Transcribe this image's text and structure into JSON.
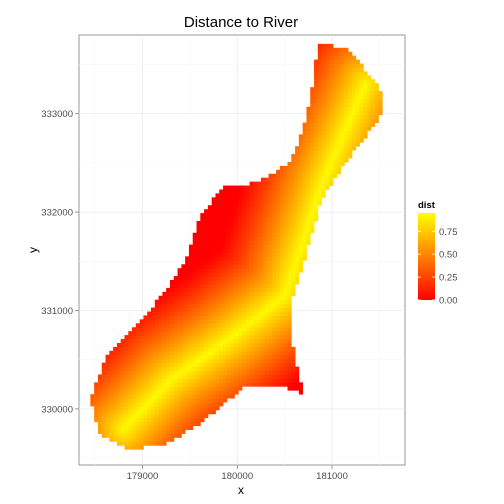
{
  "chart_data": {
    "type": "heatmap",
    "title": "Distance to River",
    "xlabel": "x",
    "ylabel": "y",
    "xlim": [
      178330,
      181770
    ],
    "ylim": [
      329430,
      333800
    ],
    "x_ticks": [
      179000,
      180000,
      181000
    ],
    "x_tick_labels": [
      "179000",
      "180000",
      "181000"
    ],
    "y_ticks": [
      330000,
      331000,
      332000,
      333000
    ],
    "y_tick_labels": [
      "330000",
      "331000",
      "332000",
      "333000"
    ],
    "grid": true,
    "legend": {
      "title": "dist",
      "position": "right",
      "range": [
        0.0,
        0.95
      ],
      "breaks": [
        0.0,
        0.25,
        0.5,
        0.75
      ],
      "labels": [
        "0.00",
        "0.25",
        "0.50",
        "0.75"
      ],
      "low_color": "#ff0000",
      "high_color": "#ffff00"
    },
    "region_outline": [
      [
        180850,
        333700
      ],
      [
        181150,
        333680
      ],
      [
        181350,
        333450
      ],
      [
        181550,
        333200
      ],
      [
        181500,
        332950
      ],
      [
        181300,
        332700
      ],
      [
        181100,
        332450
      ],
      [
        180900,
        332150
      ],
      [
        180750,
        331650
      ],
      [
        180550,
        331000
      ],
      [
        180600,
        330550
      ],
      [
        180700,
        330150
      ],
      [
        180450,
        330250
      ],
      [
        180100,
        330250
      ],
      [
        179800,
        330000
      ],
      [
        179600,
        329850
      ],
      [
        179200,
        329620
      ],
      [
        178850,
        329600
      ],
      [
        178550,
        329750
      ],
      [
        178450,
        330100
      ],
      [
        178600,
        330500
      ],
      [
        178950,
        330850
      ],
      [
        179200,
        331150
      ],
      [
        179450,
        331500
      ],
      [
        179600,
        331950
      ],
      [
        179850,
        332250
      ],
      [
        180200,
        332300
      ],
      [
        180550,
        332500
      ],
      [
        180700,
        332850
      ],
      [
        180800,
        333300
      ]
    ],
    "river_path": [
      [
        181350,
        333300
      ],
      [
        180900,
        332300
      ],
      [
        180500,
        331150
      ],
      [
        179900,
        330700
      ],
      [
        179300,
        330300
      ],
      [
        178800,
        329800
      ]
    ]
  }
}
